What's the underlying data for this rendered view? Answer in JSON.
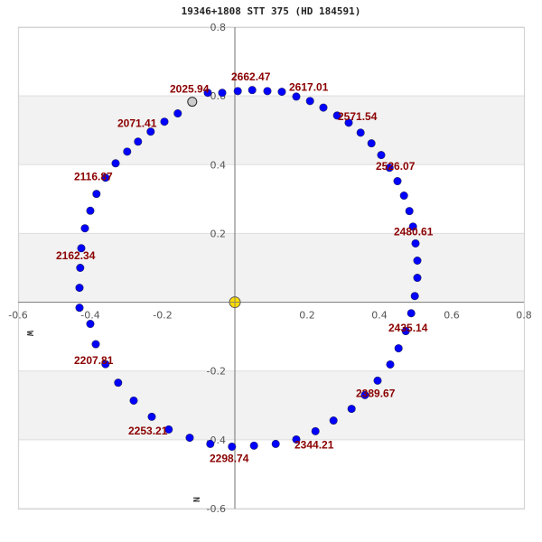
{
  "chart_data": {
    "type": "scatter",
    "title": "19346+1808 STT 375 (HD 184591)",
    "xlabel": "W",
    "ylabel": "N",
    "xlim": [
      -0.6,
      0.8
    ],
    "ylim": [
      -0.6,
      0.8
    ],
    "x_ticks": [
      -0.6,
      -0.4,
      -0.2,
      0.2,
      0.4,
      0.6,
      0.8
    ],
    "x_tick_labels": [
      "-0.6",
      "-0.4",
      "-0.2",
      "0.2",
      "0.4",
      "0.6",
      "0.8"
    ],
    "y_ticks": [
      0.8,
      0.6,
      0.4,
      0.2,
      -0.2,
      -0.4,
      -0.6
    ],
    "y_tick_labels": [
      "0.8",
      "0.6",
      "0.4",
      "0.2",
      "-0.2",
      "-0.4",
      "-0.6"
    ],
    "grid": true,
    "shaded_bands_y": [
      [
        0.4,
        0.6
      ],
      [
        0.0,
        0.2
      ],
      [
        -0.4,
        -0.2
      ]
    ],
    "primary_star": {
      "x": 0,
      "y": 0,
      "color": "#ffdd00"
    },
    "current_position": {
      "x": -0.118,
      "y": 0.583,
      "color": "#cccccc"
    },
    "series": [
      {
        "name": "orbit",
        "color": "#0000ff",
        "points": [
          [
            -0.035,
            0.609
          ],
          [
            0.008,
            0.614
          ],
          [
            0.048,
            0.617
          ],
          [
            0.09,
            0.614
          ],
          [
            0.13,
            0.612
          ],
          [
            0.17,
            0.598
          ],
          [
            0.208,
            0.585
          ],
          [
            0.245,
            0.566
          ],
          [
            0.283,
            0.543
          ],
          [
            0.315,
            0.522
          ],
          [
            0.348,
            0.493
          ],
          [
            0.378,
            0.462
          ],
          [
            0.405,
            0.428
          ],
          [
            0.428,
            0.391
          ],
          [
            0.45,
            0.352
          ],
          [
            0.468,
            0.31
          ],
          [
            0.483,
            0.265
          ],
          [
            0.493,
            0.22
          ],
          [
            0.5,
            0.171
          ],
          [
            0.505,
            0.121
          ],
          [
            0.505,
            0.071
          ],
          [
            0.498,
            0.018
          ],
          [
            0.488,
            -0.032
          ],
          [
            0.473,
            -0.084
          ],
          [
            0.453,
            -0.134
          ],
          [
            0.43,
            -0.181
          ],
          [
            0.395,
            -0.228
          ],
          [
            0.36,
            -0.27
          ],
          [
            0.323,
            -0.31
          ],
          [
            0.273,
            -0.344
          ],
          [
            0.223,
            -0.375
          ],
          [
            0.17,
            -0.399
          ],
          [
            0.113,
            -0.412
          ],
          [
            0.053,
            -0.417
          ],
          [
            -0.008,
            -0.42
          ],
          [
            -0.068,
            -0.412
          ],
          [
            -0.125,
            -0.394
          ],
          [
            -0.183,
            -0.37
          ],
          [
            -0.23,
            -0.333
          ],
          [
            -0.28,
            -0.286
          ],
          [
            -0.323,
            -0.234
          ],
          [
            -0.358,
            -0.18
          ],
          [
            -0.385,
            -0.122
          ],
          [
            -0.4,
            -0.063
          ],
          [
            -0.43,
            -0.016
          ],
          [
            -0.43,
            0.042
          ],
          [
            -0.428,
            0.1
          ],
          [
            -0.425,
            0.157
          ],
          [
            -0.415,
            0.215
          ],
          [
            -0.4,
            0.266
          ],
          [
            -0.383,
            0.315
          ],
          [
            -0.358,
            0.362
          ],
          [
            -0.33,
            0.404
          ],
          [
            -0.298,
            0.438
          ],
          [
            -0.268,
            0.467
          ],
          [
            -0.233,
            0.496
          ],
          [
            -0.195,
            0.525
          ],
          [
            -0.158,
            0.549
          ],
          [
            -0.075,
            0.609
          ]
        ]
      }
    ],
    "annotations": [
      {
        "text": "2662.47",
        "x": -0.01,
        "y": 0.645
      },
      {
        "text": "2617.01",
        "x": 0.15,
        "y": 0.615
      },
      {
        "text": "2571.54",
        "x": 0.285,
        "y": 0.53
      },
      {
        "text": "2526.07",
        "x": 0.39,
        "y": 0.385
      },
      {
        "text": "2480.61",
        "x": 0.44,
        "y": 0.195
      },
      {
        "text": "2435.14",
        "x": 0.425,
        "y": -0.085
      },
      {
        "text": "2389.67",
        "x": 0.335,
        "y": -0.275
      },
      {
        "text": "2344.21",
        "x": 0.165,
        "y": -0.425
      },
      {
        "text": "2298.74",
        "x": -0.07,
        "y": -0.465
      },
      {
        "text": "2253.21",
        "x": -0.295,
        "y": -0.385
      },
      {
        "text": "2207.81",
        "x": -0.445,
        "y": -0.18
      },
      {
        "text": "2162.34",
        "x": -0.495,
        "y": 0.125
      },
      {
        "text": "2116.87",
        "x": -0.445,
        "y": 0.355
      },
      {
        "text": "2071.41",
        "x": -0.325,
        "y": 0.51
      },
      {
        "text": "2025.94",
        "x": -0.18,
        "y": 0.61
      }
    ]
  }
}
